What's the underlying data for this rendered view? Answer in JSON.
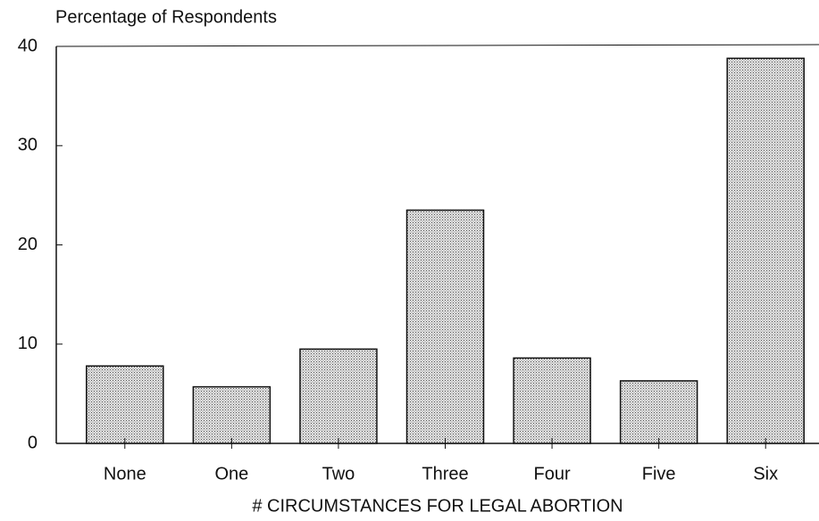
{
  "chart_data": {
    "type": "bar",
    "y_label": "Percentage of Respondents",
    "x_label": "# CIRCUMSTANCES FOR LEGAL ABORTION",
    "categories": [
      "None",
      "One",
      "Two",
      "Three",
      "Four",
      "Five",
      "Six"
    ],
    "values": [
      7.8,
      5.7,
      9.5,
      23.5,
      8.6,
      6.3,
      38.8
    ],
    "color": "#b8b8b8",
    "ylim": [
      0,
      40
    ],
    "yticks": [
      0,
      10,
      20,
      30,
      40
    ],
    "grid": false
  }
}
